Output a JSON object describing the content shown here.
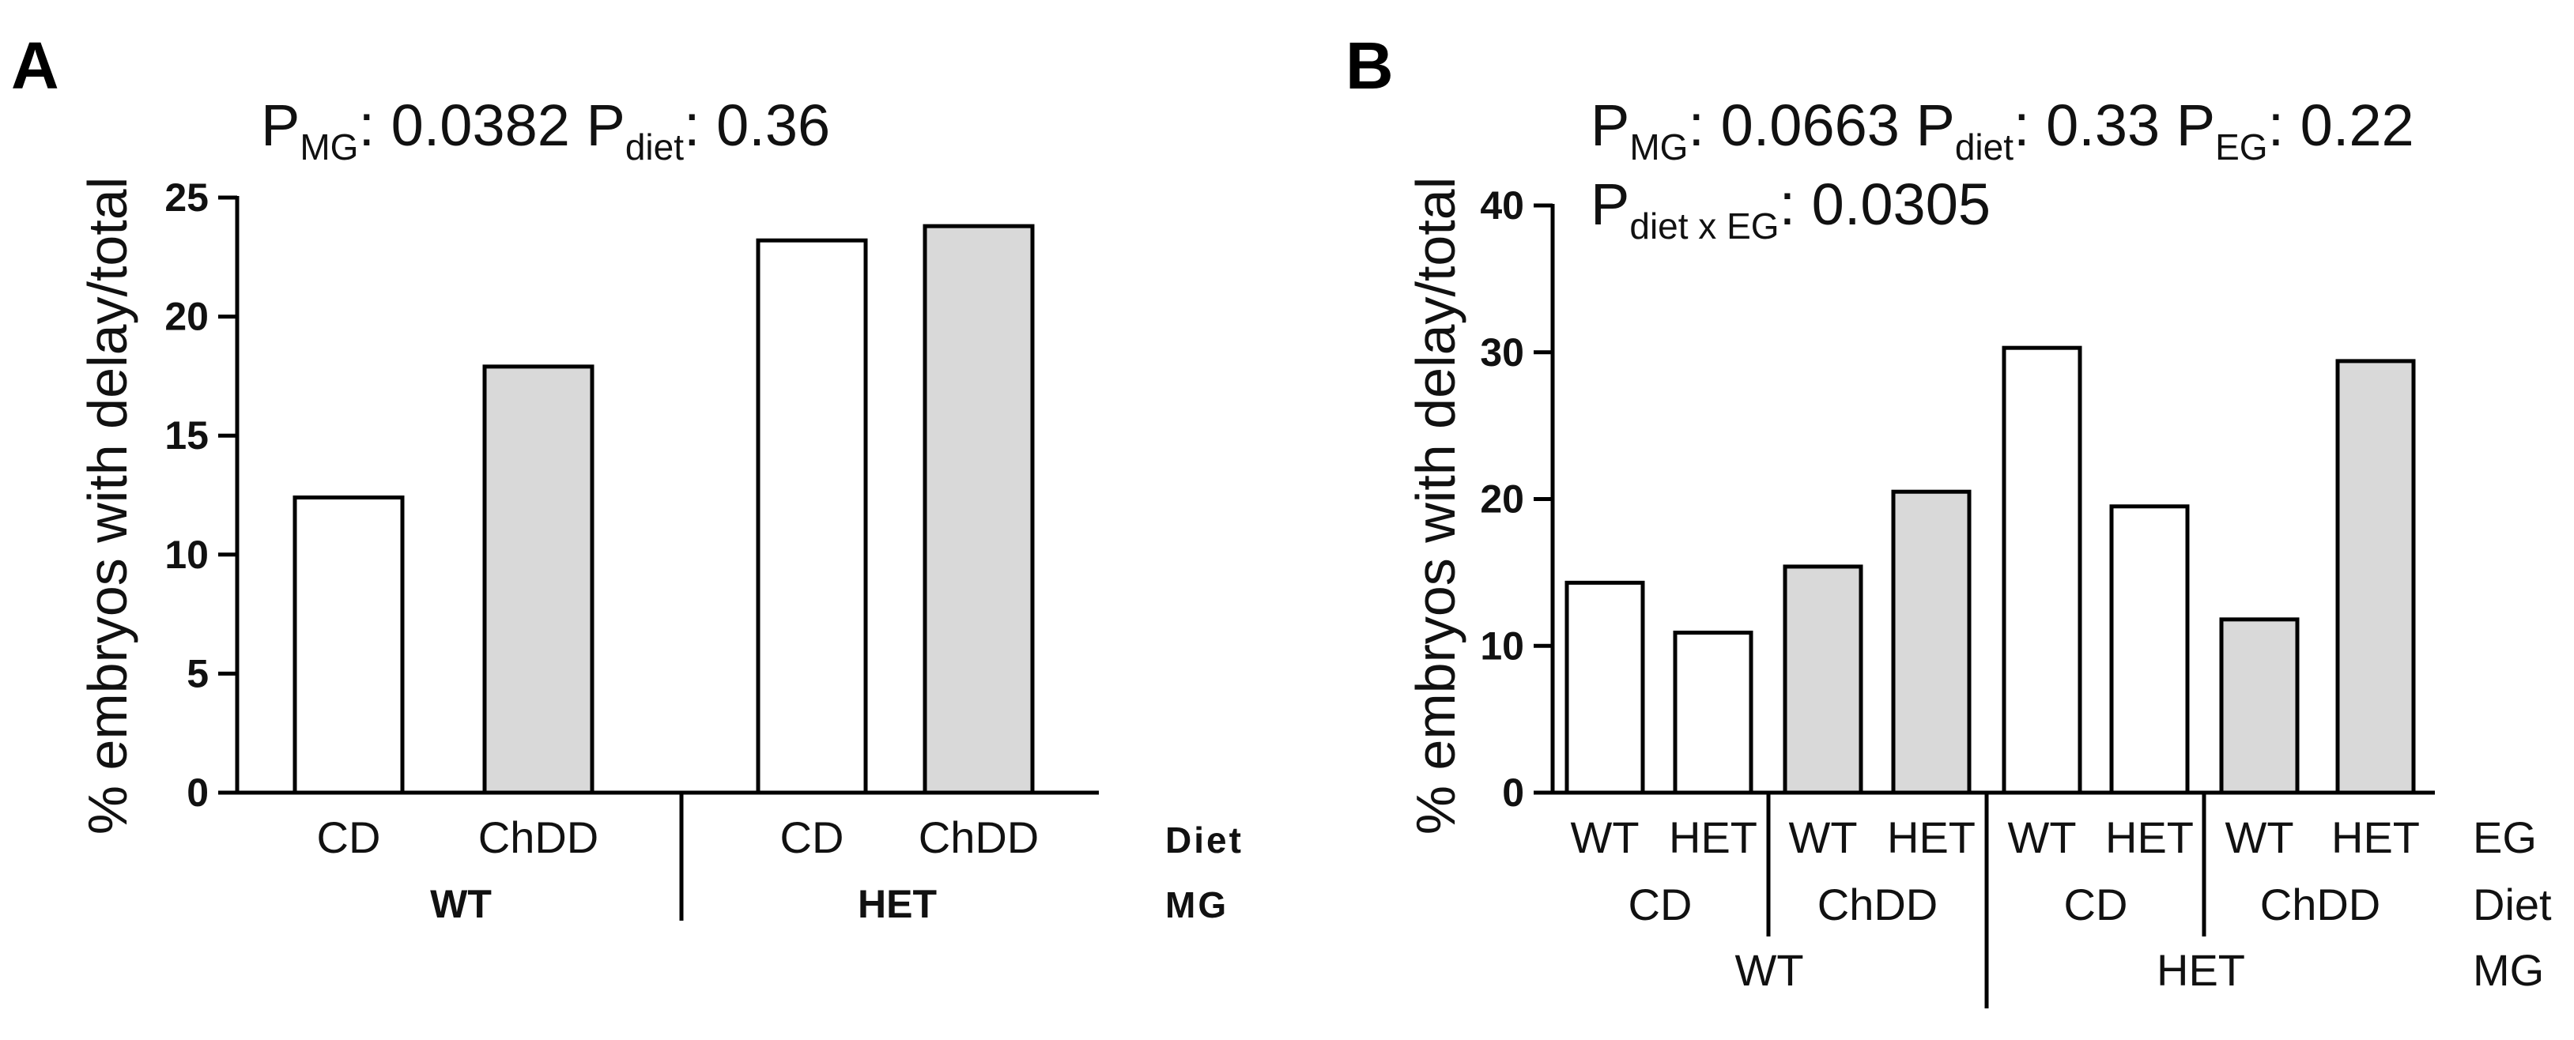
{
  "chart_data": [
    {
      "panel": "A",
      "type": "bar",
      "p_values": [
        {
          "label": "P",
          "sub": "MG",
          "value": ": 0.0382 "
        },
        {
          "label": "P",
          "sub": "diet",
          "value": ": 0.36"
        }
      ],
      "ylabel": "% embryos with delay/total",
      "ylim": [
        0,
        25
      ],
      "yticks": [
        "0",
        "5",
        "10",
        "15",
        "20",
        "25"
      ],
      "bars": [
        {
          "diet": "CD",
          "mg": "WT",
          "value": 12.4,
          "fill": "#ffffff"
        },
        {
          "diet": "ChDD",
          "mg": "WT",
          "value": 17.9,
          "fill": "#d9d9d9"
        },
        {
          "diet": "CD",
          "mg": "HET",
          "value": 23.2,
          "fill": "#ffffff"
        },
        {
          "diet": "ChDD",
          "mg": "HET",
          "value": 23.8,
          "fill": "#d9d9d9"
        }
      ],
      "diet_labels": [
        "CD",
        "ChDD",
        "CD",
        "ChDD"
      ],
      "mg_labels": [
        "WT",
        "HET"
      ],
      "row_labels": [
        "Diet",
        "MG"
      ]
    },
    {
      "panel": "B",
      "type": "bar",
      "p_values": [
        {
          "label": "P",
          "sub": "MG",
          "value": ": 0.0663 "
        },
        {
          "label": "P",
          "sub": "diet",
          "value": ": 0.33 "
        },
        {
          "label": "P",
          "sub": "EG",
          "value": ": 0.22"
        }
      ],
      "p_values_line2": [
        {
          "label": "P",
          "sub": "diet x EG",
          "value": ": 0.0305"
        }
      ],
      "ylabel": "% embryos with delay/total",
      "ylim": [
        0,
        40
      ],
      "yticks": [
        "0",
        "10",
        "20",
        "30",
        "40"
      ],
      "bars": [
        {
          "eg": "WT",
          "diet": "CD",
          "mg": "WT",
          "value": 14.3,
          "fill": "#ffffff"
        },
        {
          "eg": "HET",
          "diet": "CD",
          "mg": "WT",
          "value": 10.9,
          "fill": "#ffffff"
        },
        {
          "eg": "WT",
          "diet": "ChDD",
          "mg": "WT",
          "value": 15.4,
          "fill": "#d9d9d9"
        },
        {
          "eg": "HET",
          "diet": "ChDD",
          "mg": "WT",
          "value": 20.5,
          "fill": "#d9d9d9"
        },
        {
          "eg": "WT",
          "diet": "CD",
          "mg": "HET",
          "value": 30.3,
          "fill": "#ffffff"
        },
        {
          "eg": "HET",
          "diet": "CD",
          "mg": "HET",
          "value": 19.5,
          "fill": "#ffffff"
        },
        {
          "eg": "WT",
          "diet": "ChDD",
          "mg": "HET",
          "value": 11.8,
          "fill": "#d9d9d9"
        },
        {
          "eg": "HET",
          "diet": "ChDD",
          "mg": "HET",
          "value": 29.4,
          "fill": "#d9d9d9"
        }
      ],
      "eg_labels": [
        "WT",
        "HET",
        "WT",
        "HET",
        "WT",
        "HET",
        "WT",
        "HET"
      ],
      "diet_labels": [
        "CD",
        "ChDD",
        "CD",
        "ChDD"
      ],
      "mg_labels": [
        "WT",
        "HET"
      ],
      "row_labels": [
        "EG",
        "Diet",
        "MG"
      ]
    }
  ]
}
